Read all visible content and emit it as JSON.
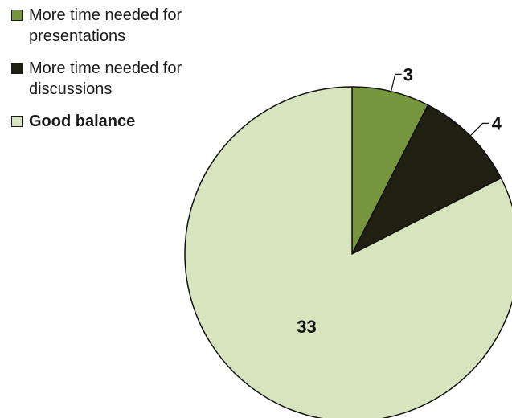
{
  "chart_data": {
    "type": "pie",
    "categories": [
      "More time needed for presentations",
      "More time needed for discussions",
      "Good balance"
    ],
    "values": [
      3,
      4,
      33
    ],
    "colors": [
      "#77953d",
      "#1f1f12",
      "#d7e4bd"
    ],
    "data_labels": [
      "3",
      "4",
      "33"
    ],
    "legend_position": "top-left",
    "legend_bold": [
      false,
      false,
      true
    ]
  },
  "legend": {
    "items": [
      {
        "label": "More time needed for presentations"
      },
      {
        "label": "More time needed for discussions"
      },
      {
        "label": "Good balance"
      }
    ]
  }
}
